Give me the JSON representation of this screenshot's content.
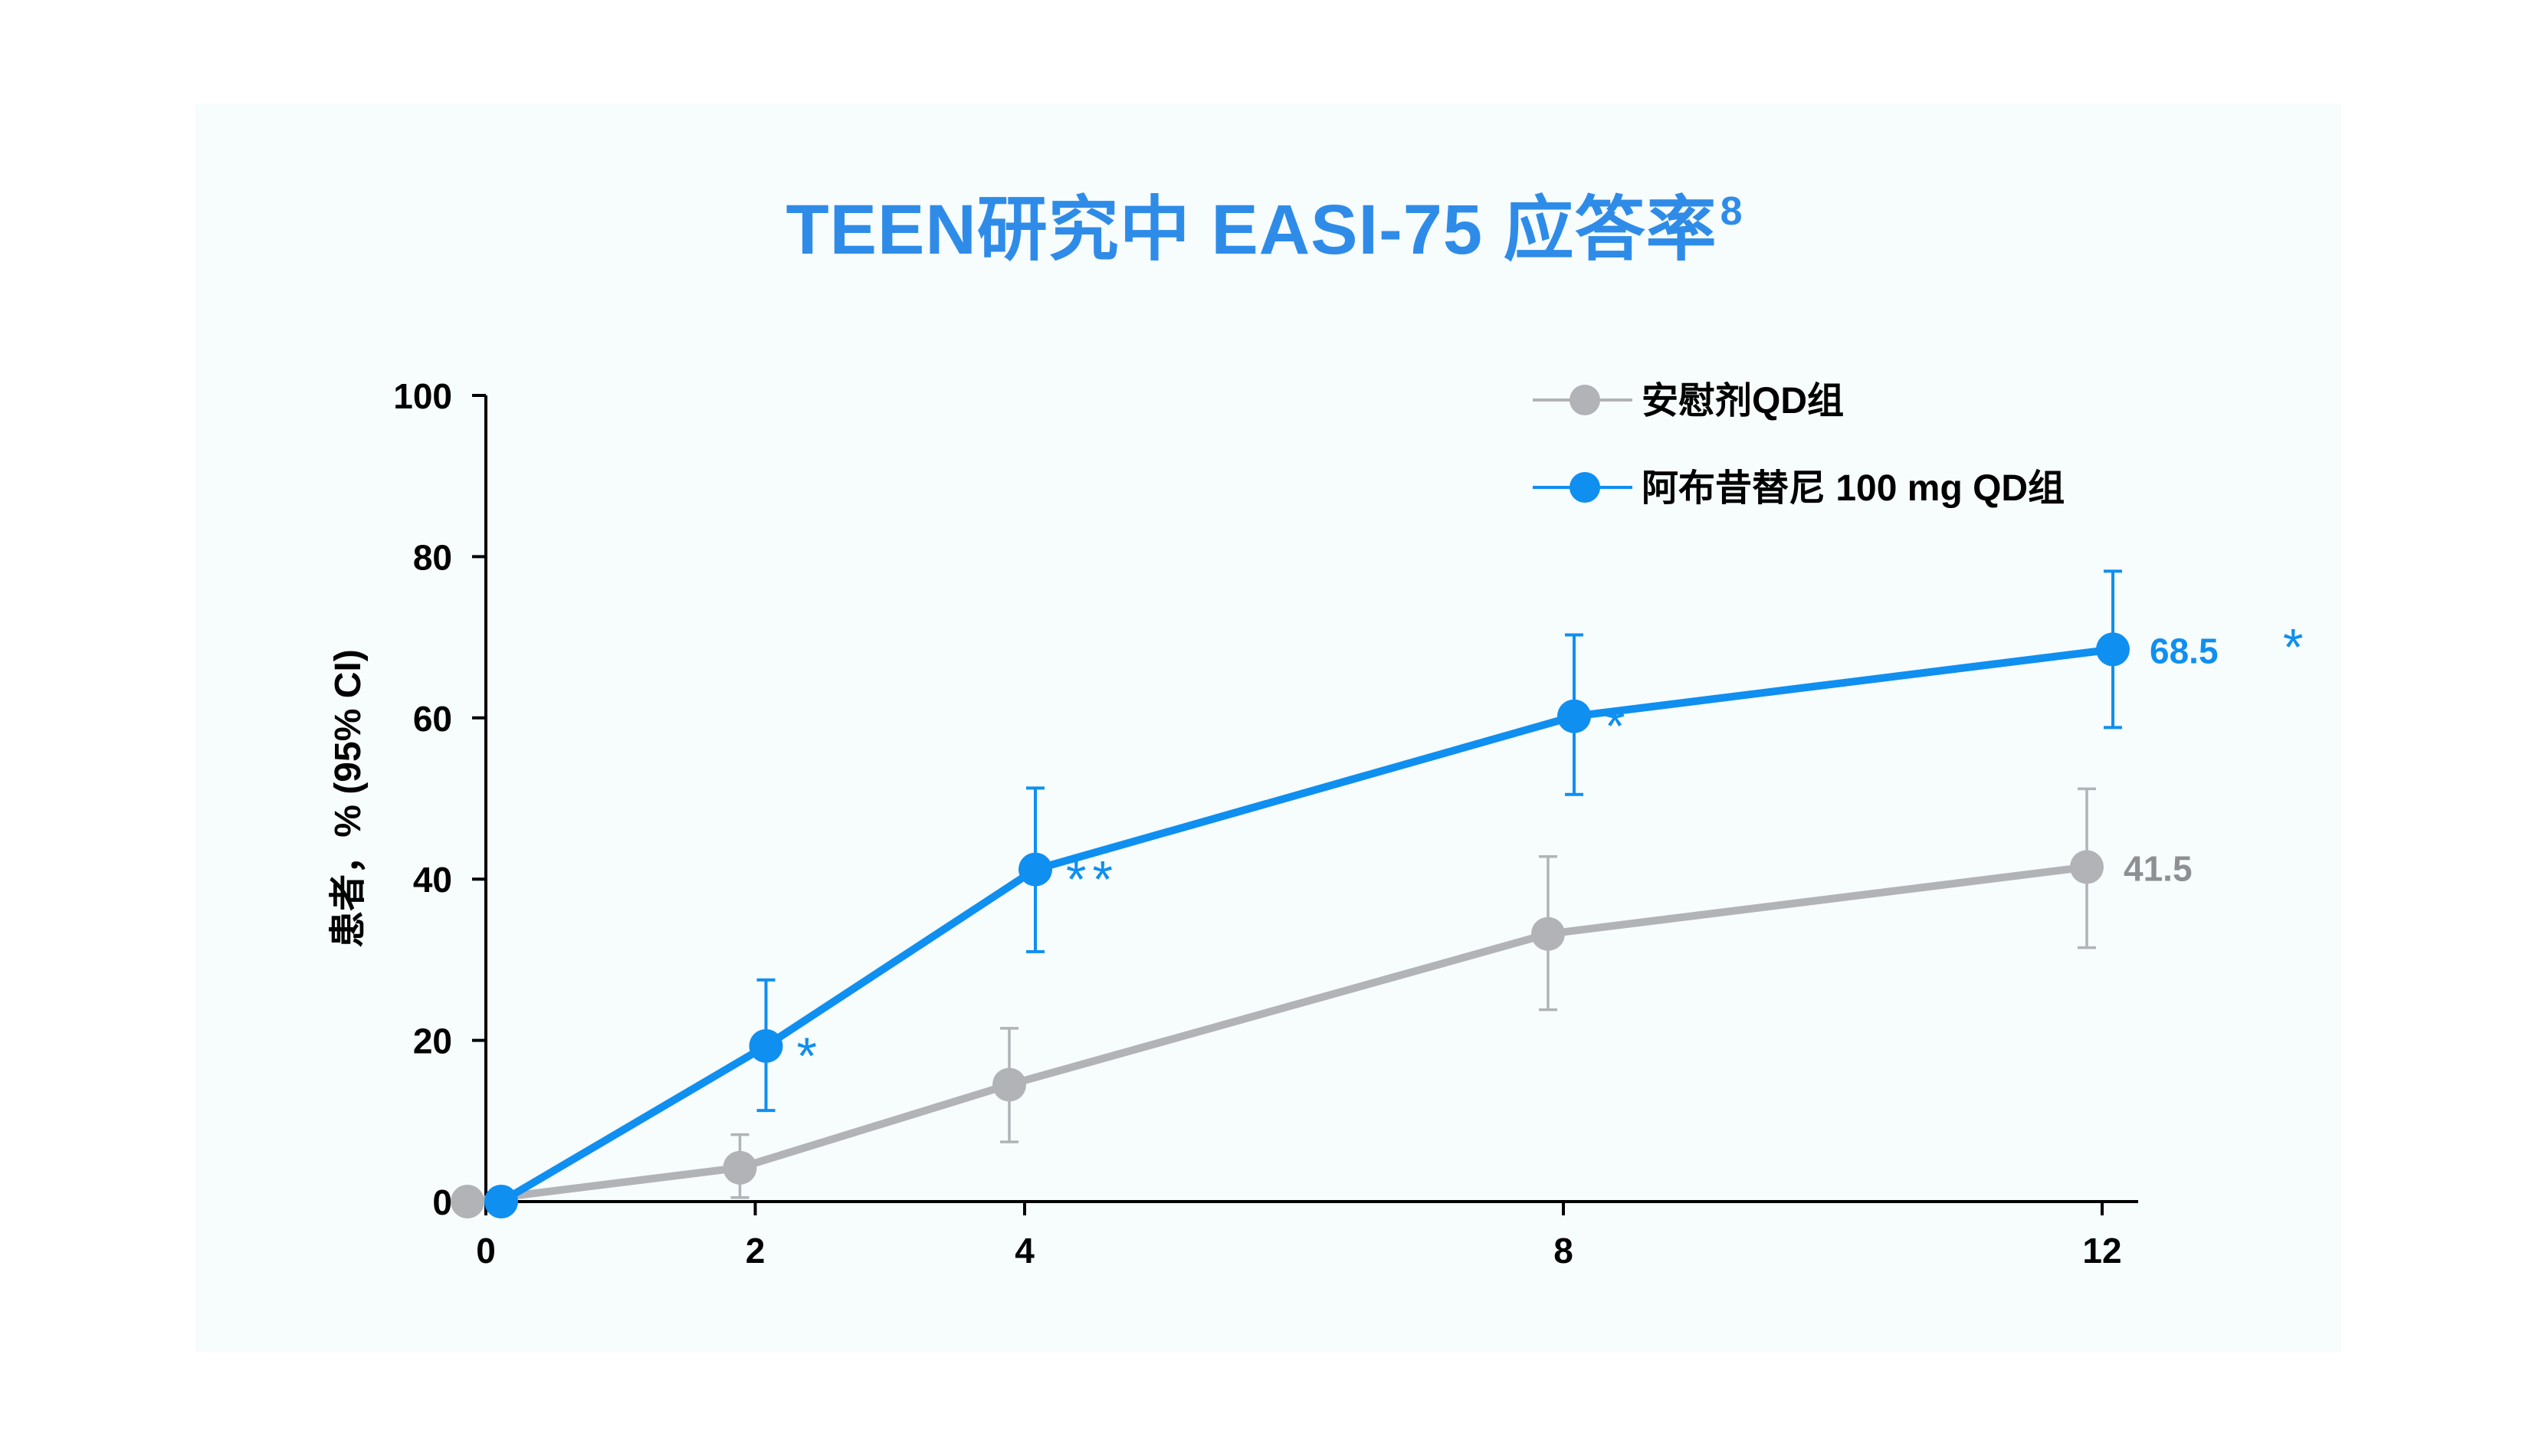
{
  "title": {
    "text": "TEEN研究中 EASI-75 应答率",
    "superscript": "8"
  },
  "colors": {
    "upadacitinib": "#0f8ff0",
    "placebo": "#b1b3b6",
    "title": "#2e8ce8",
    "axis": "#000000",
    "background": "#f7fcfd"
  },
  "chart_data": {
    "type": "line",
    "title": "TEEN研究中 EASI-75 应答率",
    "xlabel": "",
    "ylabel": "患者，% (95% CI)",
    "xlim": [
      0,
      12
    ],
    "ylim": [
      0,
      100
    ],
    "x_ticks": [
      0,
      2,
      4,
      8,
      12
    ],
    "y_ticks": [
      0,
      20,
      40,
      60,
      80,
      100
    ],
    "grid": false,
    "legend_position": "top-right",
    "series": [
      {
        "name": "安慰剂QD组",
        "color": "#b1b3b6",
        "x": [
          0,
          2,
          4,
          8,
          12
        ],
        "y": [
          0,
          4.2,
          14.5,
          33.2,
          41.5
        ],
        "ci_low": [
          0,
          0.5,
          7.4,
          23.8,
          31.5
        ],
        "ci_high": [
          0,
          8.3,
          21.5,
          42.8,
          51.2
        ],
        "significance": [
          "",
          "",
          "",
          "",
          ""
        ],
        "end_label": "41.5"
      },
      {
        "name": "阿布昔替尼 100 mg QD组",
        "color": "#0f8ff0",
        "x": [
          0,
          2,
          4,
          8,
          12
        ],
        "y": [
          0,
          19.3,
          41.2,
          60.2,
          68.5
        ],
        "ci_low": [
          0,
          11.3,
          31.0,
          50.5,
          58.8
        ],
        "ci_high": [
          0,
          27.5,
          51.3,
          70.3,
          78.2
        ],
        "significance": [
          "",
          "*",
          "**",
          "*",
          "*"
        ],
        "end_label": "68.5"
      }
    ]
  }
}
